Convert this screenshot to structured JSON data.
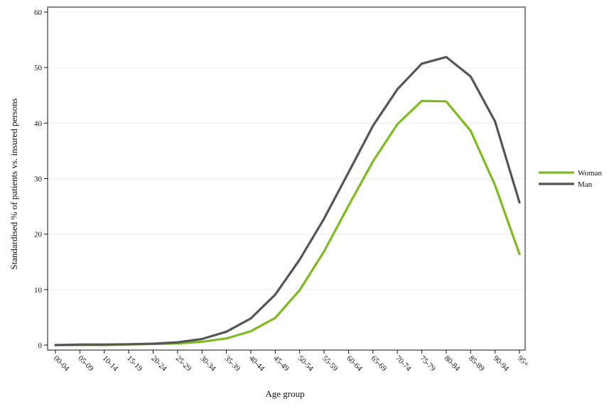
{
  "chart_data": {
    "type": "line",
    "title": "",
    "xlabel": "Age group",
    "ylabel": "Standardised % of patients vs. insured persons",
    "categories": [
      "00-04",
      "05-09",
      "10-14",
      "15-19",
      "20-24",
      "25-29",
      "30-34",
      "35-39",
      "40-44",
      "45-49",
      "50-54",
      "55-59",
      "60-64",
      "65-69",
      "70-74",
      "75-79",
      "80-84",
      "85-89",
      "90-94",
      "95+"
    ],
    "ylim": [
      0,
      60
    ],
    "yticks": [
      "0",
      "10",
      "20",
      "30",
      "40",
      "50",
      "60"
    ],
    "grid": "horizontal",
    "legend_position": "right",
    "series": [
      {
        "name": "Woman",
        "color": "#7dbb1f",
        "values": [
          0,
          0,
          0,
          0.1,
          0.2,
          0.3,
          0.6,
          1.2,
          2.5,
          4.9,
          9.9,
          16.9,
          25.1,
          33.1,
          39.8,
          44.0,
          43.9,
          38.6,
          28.8,
          16.4
        ]
      },
      {
        "name": "Man",
        "color": "#555555",
        "values": [
          0,
          0.1,
          0.1,
          0.15,
          0.25,
          0.5,
          1.1,
          2.4,
          4.8,
          9.1,
          15.4,
          22.8,
          31.1,
          39.5,
          46.1,
          50.7,
          51.9,
          48.4,
          40.3,
          25.7
        ]
      }
    ]
  }
}
